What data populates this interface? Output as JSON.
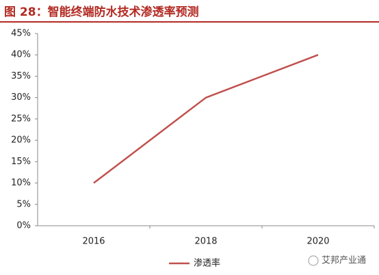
{
  "chart_data": {
    "type": "line",
    "title": "图 28：智能终端防水技术渗透率预测",
    "categories": [
      "2016",
      "2018",
      "2020"
    ],
    "series": [
      {
        "name": "渗透率",
        "color": "#c0504d",
        "values": [
          10,
          30,
          40
        ]
      }
    ],
    "ylim": [
      0,
      45
    ],
    "yticks": [
      {
        "value": 0,
        "label": "0%"
      },
      {
        "value": 5,
        "label": "5%"
      },
      {
        "value": 10,
        "label": "10%"
      },
      {
        "value": 15,
        "label": "15%"
      },
      {
        "value": 20,
        "label": "20%"
      },
      {
        "value": 25,
        "label": "25%"
      },
      {
        "value": 30,
        "label": "30%"
      },
      {
        "value": 35,
        "label": "35%"
      },
      {
        "value": 40,
        "label": "40%"
      },
      {
        "value": 45,
        "label": "45%"
      }
    ],
    "grid": false,
    "legend": "bottom"
  },
  "watermark": "艾邦产业通"
}
